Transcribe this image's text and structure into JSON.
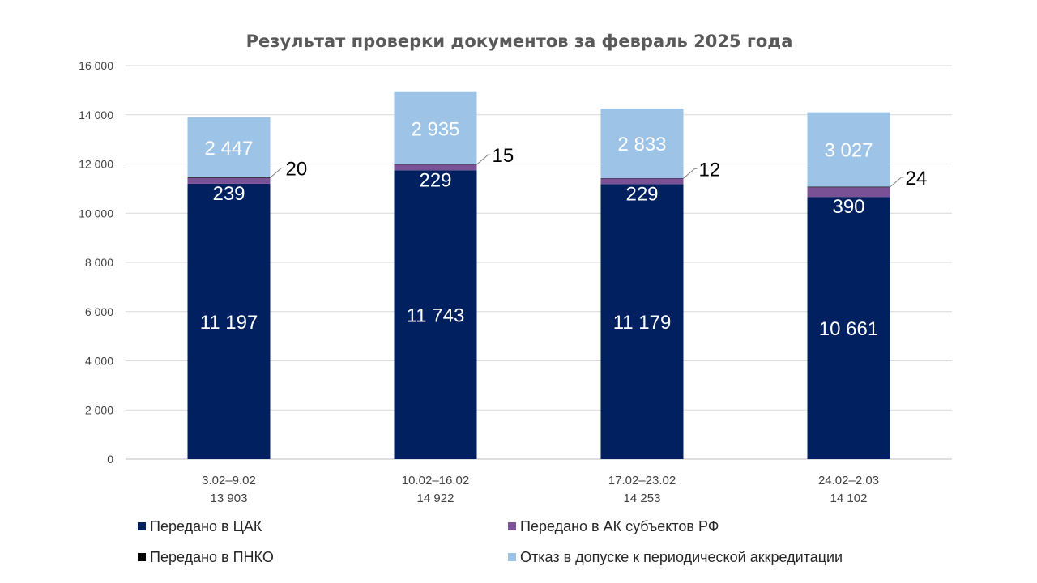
{
  "chart_data": {
    "type": "bar",
    "stacked": true,
    "title": "Результат проверки документов за февраль 2025 года",
    "categories": [
      "3.02–9.02",
      "10.02–16.02",
      "17.02–23.02",
      "24.02–2.03"
    ],
    "category_totals": [
      "13 903",
      "14 922",
      "14 253",
      "14 102"
    ],
    "ylim": [
      0,
      16000
    ],
    "yticks": [
      0,
      2000,
      4000,
      6000,
      8000,
      10000,
      12000,
      14000,
      16000
    ],
    "ytick_labels": [
      "0",
      "2 000",
      "4 000",
      "6 000",
      "8 000",
      "10 000",
      "12 000",
      "14 000",
      "16 000"
    ],
    "grid": true,
    "legend_position": "bottom",
    "series": [
      {
        "name": "Передано в ЦАК",
        "color": "#002060",
        "values": [
          11197,
          11743,
          11179,
          10661
        ],
        "labels": [
          "11 197",
          "11 743",
          "11 179",
          "10 661"
        ],
        "label_color": "#ffffff"
      },
      {
        "name": "Передано в АК субъектов РФ",
        "color": "#7b5195",
        "values": [
          239,
          229,
          229,
          390
        ],
        "labels": [
          "239",
          "229",
          "229",
          "390"
        ],
        "label_color": "#ffffff"
      },
      {
        "name": "Передано в ПНКО",
        "color": "#000000",
        "values": [
          20,
          15,
          12,
          24
        ],
        "labels": [
          "20",
          "15",
          "12",
          "24"
        ],
        "label_color": "#000000"
      },
      {
        "name": "Отказ в допуске к периодической аккредитации",
        "color": "#9dc3e6",
        "values": [
          2447,
          2935,
          2833,
          3027
        ],
        "labels": [
          "2 447",
          "2 935",
          "2 833",
          "3 027"
        ],
        "label_color": "#ffffff"
      }
    ]
  }
}
